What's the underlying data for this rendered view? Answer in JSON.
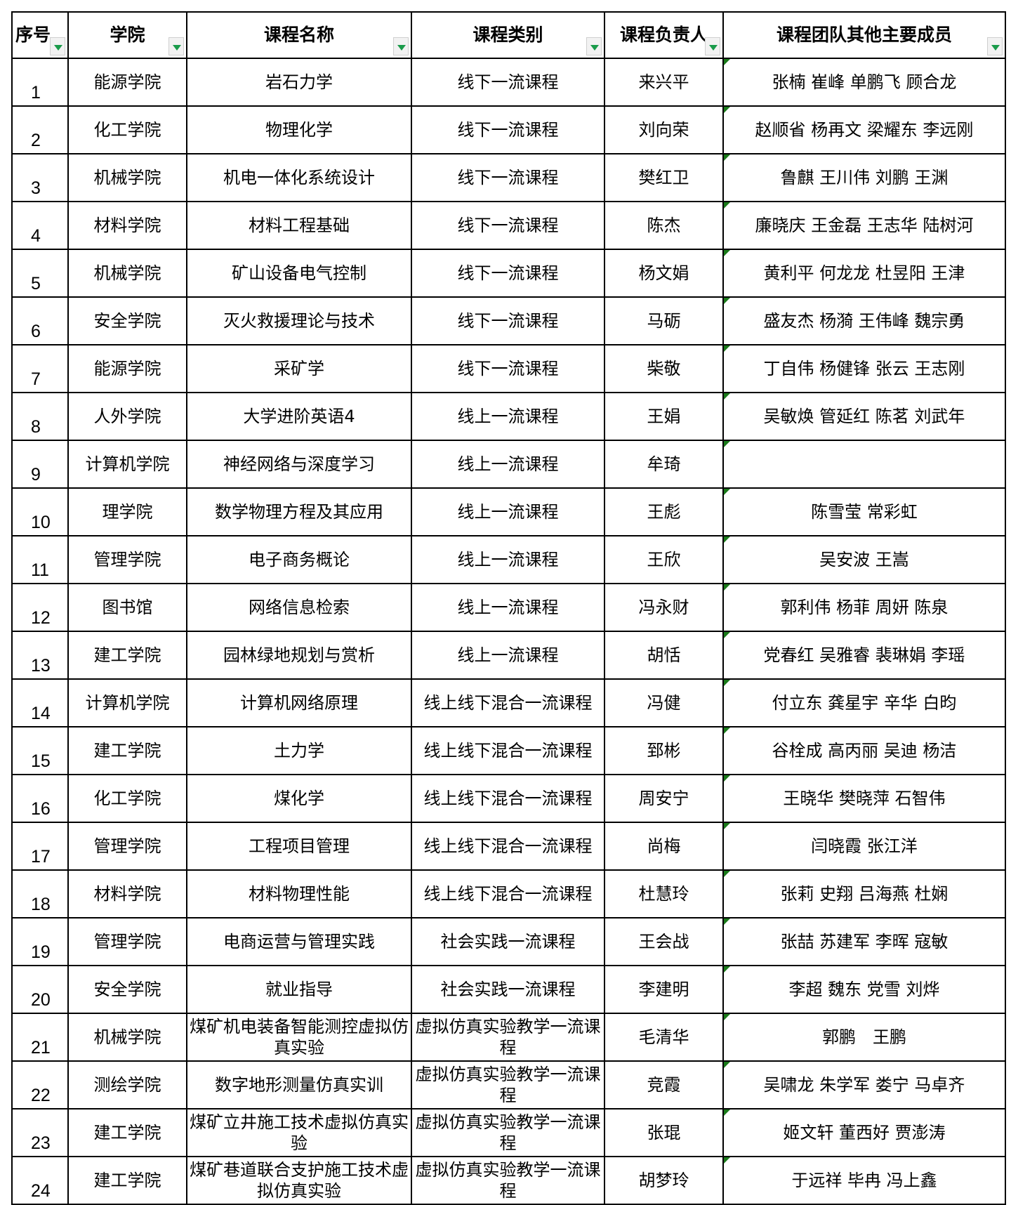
{
  "headers": [
    "序号",
    "学院",
    "课程名称",
    "课程类别",
    "课程负责人",
    "课程团队其他主要成员"
  ],
  "rows": [
    {
      "no": "1",
      "college": "能源学院",
      "course": "岩石力学",
      "category": "线下一流课程",
      "leader": "来兴平",
      "members": "张楠 崔峰 单鹏飞 顾合龙"
    },
    {
      "no": "2",
      "college": "化工学院",
      "course": "物理化学",
      "category": "线下一流课程",
      "leader": "刘向荣",
      "members": "赵顺省 杨再文 梁耀东 李远刚"
    },
    {
      "no": "3",
      "college": "机械学院",
      "course": "机电一体化系统设计",
      "category": "线下一流课程",
      "leader": "樊红卫",
      "members": "鲁麒 王川伟 刘鹏 王渊"
    },
    {
      "no": "4",
      "college": "材料学院",
      "course": "材料工程基础",
      "category": "线下一流课程",
      "leader": "陈杰",
      "members": "廉晓庆 王金磊 王志华 陆树河"
    },
    {
      "no": "5",
      "college": "机械学院",
      "course": "矿山设备电气控制",
      "category": "线下一流课程",
      "leader": "杨文娟",
      "members": "黄利平 何龙龙 杜昱阳 王津"
    },
    {
      "no": "6",
      "college": "安全学院",
      "course": "灭火救援理论与技术",
      "category": "线下一流课程",
      "leader": "马砺",
      "members": "盛友杰 杨漪 王伟峰 魏宗勇"
    },
    {
      "no": "7",
      "college": "能源学院",
      "course": "采矿学",
      "category": "线下一流课程",
      "leader": "柴敬",
      "members": "丁自伟 杨健锋 张云 王志刚"
    },
    {
      "no": "8",
      "college": "人外学院",
      "course": "大学进阶英语4",
      "category": "线上一流课程",
      "leader": "王娟",
      "members": "吴敏焕 管延红 陈茗 刘武年"
    },
    {
      "no": "9",
      "college": "计算机学院",
      "course": "神经网络与深度学习",
      "category": "线上一流课程",
      "leader": "牟琦",
      "members": ""
    },
    {
      "no": "10",
      "college": "理学院",
      "course": "数学物理方程及其应用",
      "category": "线上一流课程",
      "leader": "王彪",
      "members": "陈雪莹 常彩虹"
    },
    {
      "no": "11",
      "college": "管理学院",
      "course": "电子商务概论",
      "category": "线上一流课程",
      "leader": "王欣",
      "members": "吴安波 王嵩"
    },
    {
      "no": "12",
      "college": "图书馆",
      "course": "网络信息检索",
      "category": "线上一流课程",
      "leader": "冯永财",
      "members": "郭利伟 杨菲 周妍 陈泉"
    },
    {
      "no": "13",
      "college": "建工学院",
      "course": "园林绿地规划与赏析",
      "category": "线上一流课程",
      "leader": "胡恬",
      "members": "党春红 吴雅睿 裴琳娟 李瑶"
    },
    {
      "no": "14",
      "college": "计算机学院",
      "course": "计算机网络原理",
      "category": "线上线下混合一流课程",
      "leader": "冯健",
      "members": "付立东 龚星宇 辛华 白昀"
    },
    {
      "no": "15",
      "college": "建工学院",
      "course": "土力学",
      "category": "线上线下混合一流课程",
      "leader": "郅彬",
      "members": "谷栓成 高丙丽 吴迪 杨洁"
    },
    {
      "no": "16",
      "college": "化工学院",
      "course": "煤化学",
      "category": "线上线下混合一流课程",
      "leader": "周安宁",
      "members": "王晓华 樊晓萍 石智伟"
    },
    {
      "no": "17",
      "college": "管理学院",
      "course": "工程项目管理",
      "category": "线上线下混合一流课程",
      "leader": "尚梅",
      "members": "闫晓霞 张江洋"
    },
    {
      "no": "18",
      "college": "材料学院",
      "course": "材料物理性能",
      "category": "线上线下混合一流课程",
      "leader": "杜慧玲",
      "members": "张莉 史翔 吕海燕 杜娴"
    },
    {
      "no": "19",
      "college": "管理学院",
      "course": "电商运营与管理实践",
      "category": "社会实践一流课程",
      "leader": "王会战",
      "members": "张喆 苏建军 李晖 寇敏"
    },
    {
      "no": "20",
      "college": "安全学院",
      "course": "就业指导",
      "category": "社会实践一流课程",
      "leader": "李建明",
      "members": "李超 魏东 党雪 刘烨"
    },
    {
      "no": "21",
      "college": "机械学院",
      "course": "煤矿机电装备智能测控虚拟仿真实验",
      "category": "虚拟仿真实验教学一流课程",
      "leader": "毛清华",
      "members": "郭鹏　王鹏"
    },
    {
      "no": "22",
      "college": "测绘学院",
      "course": "数字地形测量仿真实训",
      "category": "虚拟仿真实验教学一流课程",
      "leader": "竞霞",
      "members": "吴啸龙 朱学军 娄宁 马卓齐"
    },
    {
      "no": "23",
      "college": "建工学院",
      "course": "煤矿立井施工技术虚拟仿真实验",
      "category": "虚拟仿真实验教学一流课程",
      "leader": "张琨",
      "members": "姬文轩 董西好 贾澎涛"
    },
    {
      "no": "24",
      "college": "建工学院",
      "course": "煤矿巷道联合支护施工技术虚拟仿真实验",
      "category": "虚拟仿真实验教学一流课程",
      "leader": "胡梦玲",
      "members": "于远祥 毕冉 冯上鑫"
    }
  ],
  "colors": {
    "filter_arrow": "#1a9b4a",
    "comment_marker": "#1a7a1a",
    "border": "#000000"
  }
}
